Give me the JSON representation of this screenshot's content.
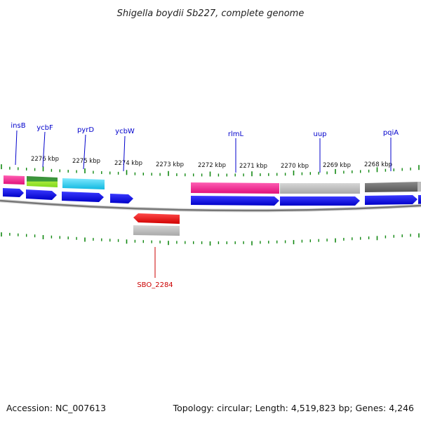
{
  "title": "Shigella boydii Sb227, complete genome",
  "footer": {
    "accession": "Accession: NC_007613",
    "summary": "Topology: circular; Length: 4,519,823 bp; Genes: 4,246"
  },
  "colors": {
    "gene_label": "#0000cc",
    "highlight_label": "#cc0000",
    "tick": "#118811",
    "backbone": "#777777",
    "cds_forward": "#0000ee",
    "cds_reverse": "#ee0000"
  },
  "scale_labels": [
    "2276 kbp",
    "2275 kbp",
    "2274 kbp",
    "2273 kbp",
    "2272 kbp",
    "2271 kbp",
    "2270 kbp",
    "2269 kbp",
    "2268 kbp"
  ],
  "top_gene_labels": [
    "insB",
    "ycbF",
    "pyrD",
    "ycbW",
    "rlmL",
    "uup",
    "pqiA"
  ],
  "bottom_gene_labels": [
    "SBO_2284"
  ]
}
